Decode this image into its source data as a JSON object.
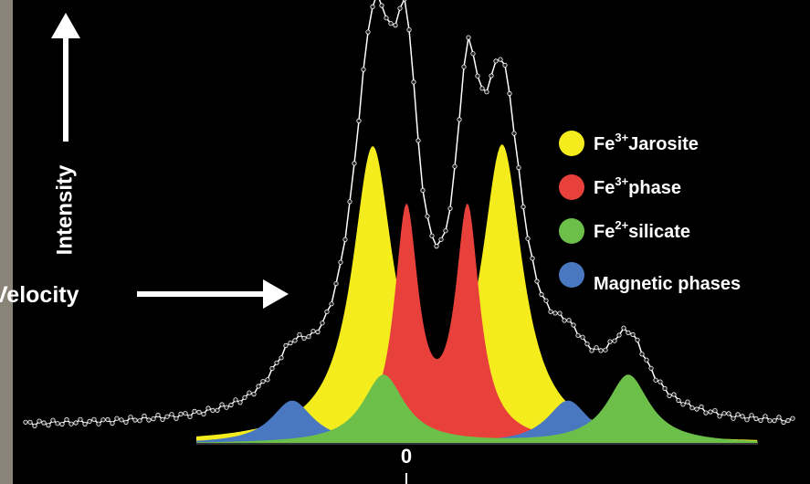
{
  "axes": {
    "y_label": "Intensity",
    "x_label": "Velocity",
    "x_zero": "0"
  },
  "legend": [
    {
      "element": "Fe",
      "charge": "3+",
      "name": "Jarosite",
      "color": "#f5ec1e"
    },
    {
      "element": "Fe",
      "charge": "3+",
      "name": "phase",
      "color": "#e8413c"
    },
    {
      "element": "Fe",
      "charge": "2+",
      "name": "silicate",
      "color": "#6cc04a"
    },
    {
      "element": "",
      "charge": "",
      "name": "Magnetic phases",
      "color": "#4a78c0"
    }
  ]
}
